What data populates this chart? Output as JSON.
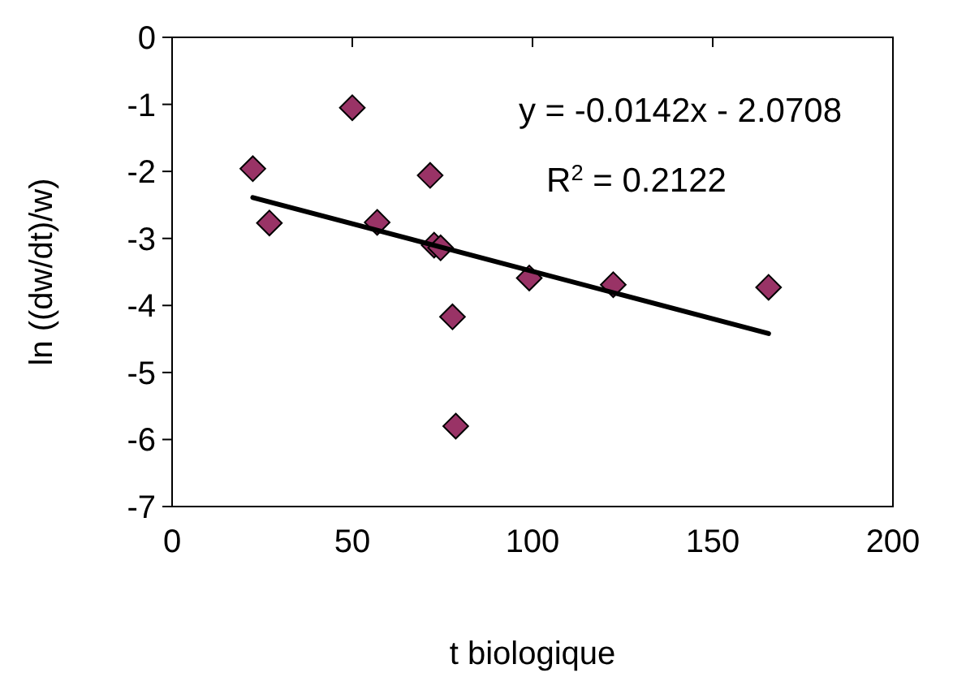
{
  "chart_data": {
    "type": "scatter",
    "xlabel": "t biologique",
    "ylabel": "ln ((dw/dt)/w)",
    "xlim": [
      0,
      200
    ],
    "xticks": [
      0,
      50,
      100,
      150,
      200
    ],
    "ylim": [
      -7,
      0
    ],
    "yticks": [
      -7,
      -6,
      -5,
      -4,
      -3,
      -2,
      -1,
      0
    ],
    "grid": false,
    "marker": "diamond",
    "series": [
      {
        "color": "#993366",
        "x": [
          22.4,
          27.0,
          50.0,
          56.9,
          71.6,
          72.7,
          74.5,
          77.8,
          78.7,
          99.1,
          122.4,
          165.5
        ],
        "values": [
          -1.96,
          -2.77,
          -1.05,
          -2.76,
          -2.06,
          -3.1,
          -3.14,
          -4.17,
          -5.8,
          -3.59,
          -3.69,
          -3.73
        ]
      },
      {
        "type": "line",
        "color": "#000000",
        "x": [
          22.4,
          165.5
        ],
        "values": [
          -2.39,
          -4.42
        ],
        "line_style": "solid",
        "marker": "none"
      }
    ],
    "annotations": [
      "y = -0.0142x - 2.0708",
      "R$^{2}$ = 0.2122"
    ]
  }
}
